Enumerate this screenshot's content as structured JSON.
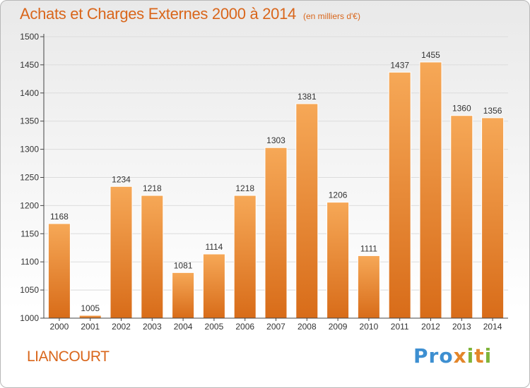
{
  "header": {
    "title": "Achats et Charges Externes 2000 à 2014",
    "subtitle": "(en milliers d'€)"
  },
  "footer": {
    "commune": "LIANCOURT",
    "brand": "Proxiti"
  },
  "colors": {
    "accent": "#d9661b",
    "bar_top": "#f6a857",
    "bar_bottom": "#d86c19",
    "axis": "#444444"
  },
  "chart_data": {
    "type": "bar",
    "title": "Achats et Charges Externes 2000 à 2014",
    "subtitle": "(en milliers d'€)",
    "xlabel": "",
    "ylabel": "",
    "categories": [
      "2000",
      "2001",
      "2002",
      "2003",
      "2004",
      "2005",
      "2006",
      "2007",
      "2008",
      "2009",
      "2010",
      "2011",
      "2012",
      "2013",
      "2014"
    ],
    "values": [
      1168,
      1005,
      1234,
      1218,
      1081,
      1114,
      1218,
      1303,
      1381,
      1206,
      1111,
      1437,
      1455,
      1360,
      1356
    ],
    "ylim": [
      1000,
      1500
    ],
    "yticks": [
      1000,
      1050,
      1100,
      1150,
      1200,
      1250,
      1300,
      1350,
      1400,
      1450,
      1500
    ],
    "grid": true,
    "legend": "none"
  }
}
